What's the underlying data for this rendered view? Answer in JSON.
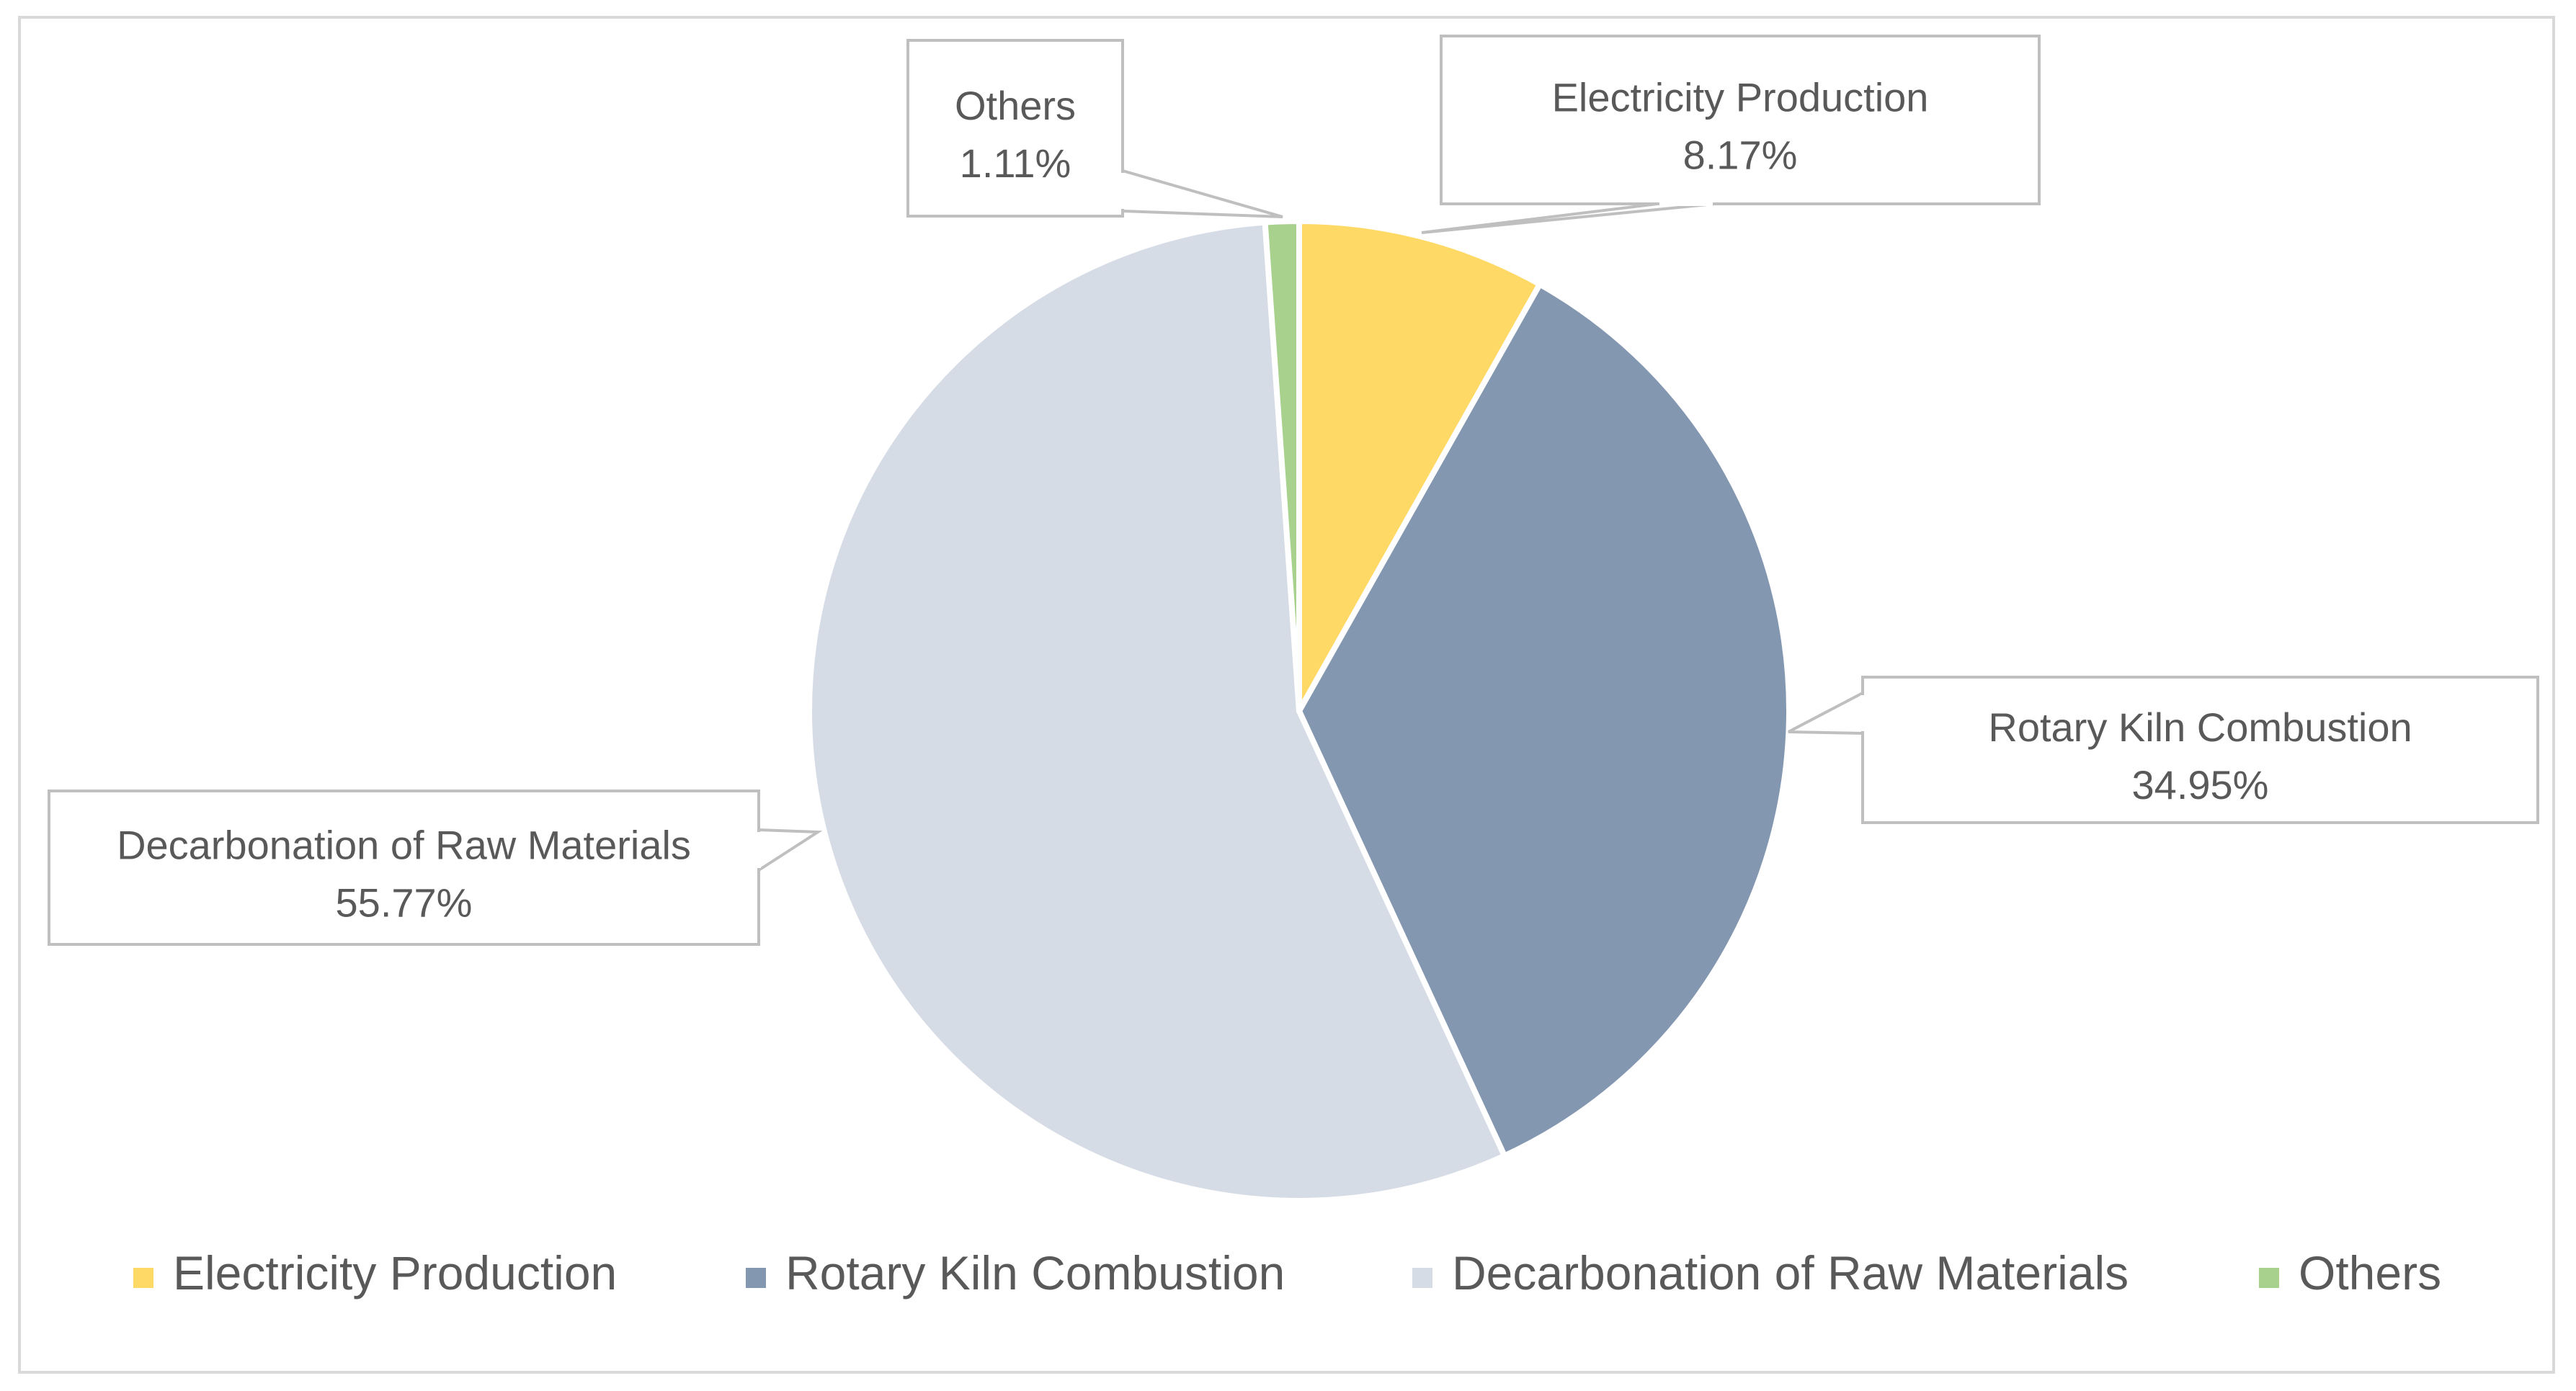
{
  "chart_data": {
    "type": "pie",
    "title": "",
    "slices": [
      {
        "label": "Electricity Production",
        "value": 8.17,
        "display": "8.17%",
        "color": "#FFD966"
      },
      {
        "label": "Rotary Kiln Combustion",
        "value": 34.95,
        "display": "34.95%",
        "color": "#8497B0"
      },
      {
        "label": "Decarbonation of Raw Materials",
        "value": 55.77,
        "display": "55.77%",
        "color": "#D6DCE5"
      },
      {
        "label": "Others",
        "value": 1.11,
        "display": "1.11%",
        "color": "#A9D18E"
      }
    ],
    "legend": {
      "placement": "bottom",
      "entries": [
        "Electricity Production",
        "Rotary Kiln Combustion",
        "Decarbonation of Raw Materials",
        "Others"
      ]
    }
  }
}
